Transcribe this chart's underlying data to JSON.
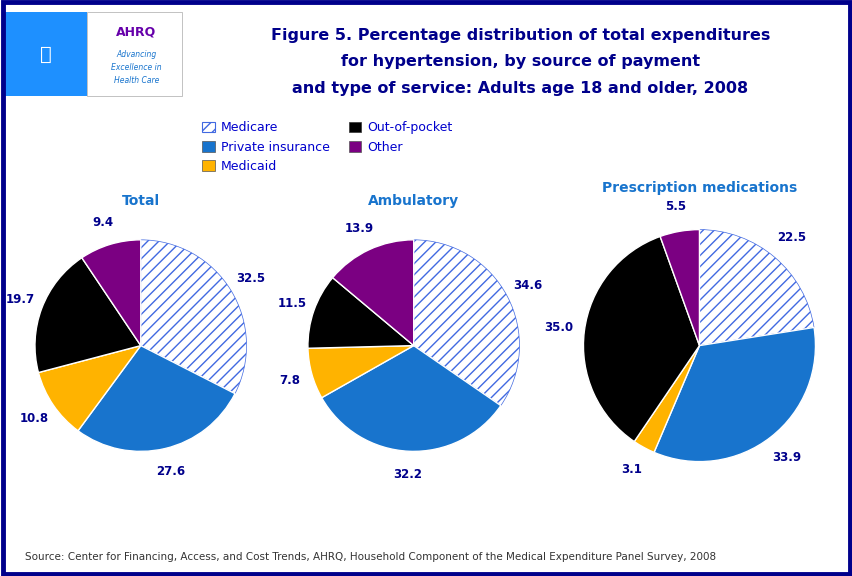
{
  "title_line1": "Figure 5. Percentage distribution of total expenditures",
  "title_line2": "for hypertension, by source of payment",
  "title_line3": "and type of service: Adults age 18 and older, 2008",
  "source_text": "Source: Center for Financing, Access, and Cost Trends, AHRQ, Household Component of the Medical Expenditure Panel Survey, 2008",
  "legend_labels": [
    "Medicare",
    "Private insurance",
    "Medicaid",
    "Out-of-pocket",
    "Other"
  ],
  "colors": {
    "Medicare": "#FFFFFF",
    "Private insurance": "#1874CD",
    "Medicaid": "#FFB300",
    "Out-of-pocket": "#000000",
    "Other": "#7B0082"
  },
  "hatch": {
    "Medicare": "///",
    "Private insurance": "",
    "Medicaid": "",
    "Out-of-pocket": "",
    "Other": ""
  },
  "pies": [
    {
      "title": "Total",
      "slices": [
        {
          "label": "Medicare",
          "value": 32.5
        },
        {
          "label": "Private insurance",
          "value": 27.6
        },
        {
          "label": "Medicaid",
          "value": 10.8
        },
        {
          "label": "Out-of-pocket",
          "value": 19.7
        },
        {
          "label": "Other",
          "value": 9.4
        }
      ]
    },
    {
      "title": "Ambulatory",
      "slices": [
        {
          "label": "Medicare",
          "value": 34.6
        },
        {
          "label": "Private insurance",
          "value": 32.2
        },
        {
          "label": "Medicaid",
          "value": 7.8
        },
        {
          "label": "Out-of-pocket",
          "value": 11.5
        },
        {
          "label": "Other",
          "value": 13.9
        }
      ]
    },
    {
      "title": "Prescription medications",
      "slices": [
        {
          "label": "Medicare",
          "value": 22.5
        },
        {
          "label": "Private insurance",
          "value": 33.9
        },
        {
          "label": "Medicaid",
          "value": 3.1
        },
        {
          "label": "Out-of-pocket",
          "value": 35.0
        },
        {
          "label": "Other",
          "value": 5.5
        }
      ]
    }
  ],
  "background_color": "#FFFFFF",
  "title_color": "#00008B",
  "pie_title_color": "#1874CD",
  "outer_border_color": "#00008B",
  "divider_color1": "#00008B",
  "divider_color2": "#4040C0",
  "label_color": "#00008B",
  "legend_text_color": "#0000CD",
  "hatch_edge_color": "#4169E1"
}
